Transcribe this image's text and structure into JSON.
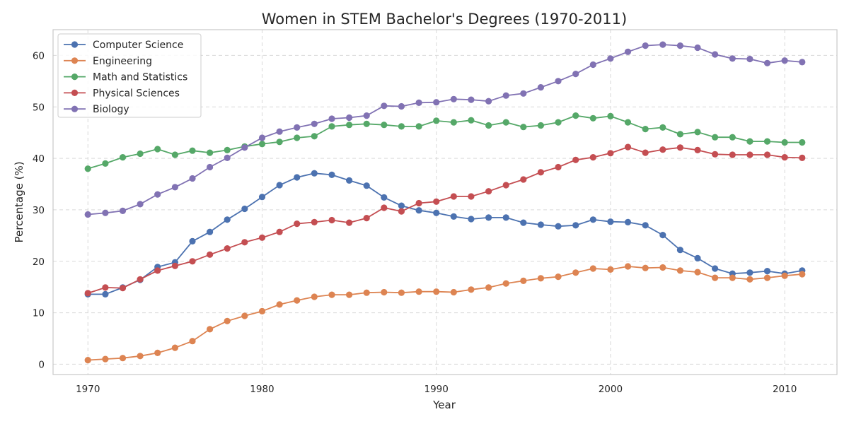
{
  "chart_data": {
    "type": "line",
    "title": "Women in STEM Bachelor's Degrees (1970-2011)",
    "xlabel": "Year",
    "ylabel": "Percentage (%)",
    "xlim": [
      1968,
      2013
    ],
    "ylim": [
      -2,
      65
    ],
    "xticks": [
      1970,
      1980,
      1990,
      2000,
      2010
    ],
    "yticks": [
      0,
      10,
      20,
      30,
      40,
      50,
      60
    ],
    "grid": true,
    "legend_position": "upper-left",
    "x": [
      1970,
      1971,
      1972,
      1973,
      1974,
      1975,
      1976,
      1977,
      1978,
      1979,
      1980,
      1981,
      1982,
      1983,
      1984,
      1985,
      1986,
      1987,
      1988,
      1989,
      1990,
      1991,
      1992,
      1993,
      1994,
      1995,
      1996,
      1997,
      1998,
      1999,
      2000,
      2001,
      2002,
      2003,
      2004,
      2005,
      2006,
      2007,
      2008,
      2009,
      2010,
      2011
    ],
    "series": [
      {
        "name": "Computer Science",
        "color": "#4c72b0",
        "values": [
          13.6,
          13.6,
          14.9,
          16.4,
          18.9,
          19.8,
          23.9,
          25.7,
          28.1,
          30.2,
          32.5,
          34.8,
          36.3,
          37.1,
          36.8,
          35.7,
          34.7,
          32.4,
          30.8,
          29.9,
          29.4,
          28.7,
          28.2,
          28.5,
          28.5,
          27.5,
          27.1,
          26.8,
          27.0,
          28.1,
          27.7,
          27.6,
          27.0,
          25.1,
          22.2,
          20.6,
          18.6,
          17.6,
          17.8,
          18.1,
          17.6,
          18.2
        ]
      },
      {
        "name": "Engineering",
        "color": "#dd8452",
        "values": [
          0.8,
          1.0,
          1.2,
          1.6,
          2.2,
          3.2,
          4.5,
          6.8,
          8.4,
          9.4,
          10.3,
          11.6,
          12.4,
          13.1,
          13.5,
          13.5,
          13.9,
          14.0,
          13.9,
          14.1,
          14.1,
          14.0,
          14.5,
          14.9,
          15.7,
          16.2,
          16.7,
          17.0,
          17.8,
          18.6,
          18.4,
          19.0,
          18.7,
          18.8,
          18.2,
          17.9,
          16.8,
          16.8,
          16.5,
          16.8,
          17.2,
          17.5
        ]
      },
      {
        "name": "Math and Statistics",
        "color": "#55a868",
        "values": [
          38.0,
          39.0,
          40.2,
          40.9,
          41.8,
          40.7,
          41.5,
          41.1,
          41.6,
          42.3,
          42.8,
          43.2,
          44.0,
          44.3,
          46.2,
          46.5,
          46.7,
          46.5,
          46.2,
          46.2,
          47.3,
          47.0,
          47.4,
          46.4,
          47.0,
          46.1,
          46.4,
          47.0,
          48.3,
          47.8,
          48.2,
          47.0,
          45.7,
          46.0,
          44.7,
          45.1,
          44.1,
          44.1,
          43.3,
          43.3,
          43.1,
          43.1
        ]
      },
      {
        "name": "Physical Sciences",
        "color": "#c44e52",
        "values": [
          13.8,
          14.9,
          14.8,
          16.5,
          18.2,
          19.1,
          20.0,
          21.3,
          22.5,
          23.7,
          24.6,
          25.7,
          27.3,
          27.6,
          28.0,
          27.5,
          28.4,
          30.4,
          29.7,
          31.3,
          31.6,
          32.6,
          32.6,
          33.6,
          34.8,
          35.9,
          37.3,
          38.3,
          39.7,
          40.2,
          41.0,
          42.2,
          41.1,
          41.7,
          42.1,
          41.6,
          40.8,
          40.7,
          40.7,
          40.7,
          40.2,
          40.1
        ]
      },
      {
        "name": "Biology",
        "color": "#8172b3",
        "values": [
          29.1,
          29.4,
          29.8,
          31.1,
          33.0,
          34.4,
          36.1,
          38.3,
          40.1,
          42.1,
          44.0,
          45.2,
          46.0,
          46.7,
          47.7,
          47.9,
          48.3,
          50.2,
          50.1,
          50.8,
          50.9,
          51.5,
          51.4,
          51.1,
          52.2,
          52.6,
          53.8,
          55.0,
          56.4,
          58.2,
          59.4,
          60.7,
          61.9,
          62.1,
          61.9,
          61.5,
          60.2,
          59.4,
          59.3,
          58.5,
          59.0,
          58.7
        ]
      }
    ]
  }
}
